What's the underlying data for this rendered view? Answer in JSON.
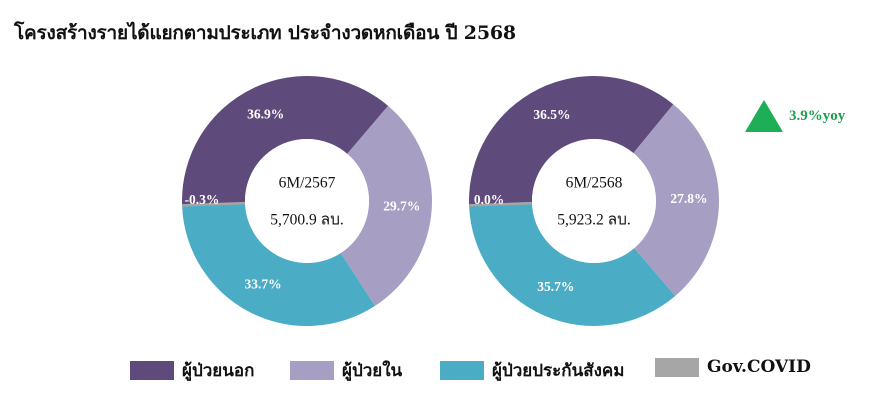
{
  "title": "โครงสร้างรายได้แยกตามประเภท ประจำงวดหกเดือน ปี 2568",
  "yoy": {
    "text": "3.9%yoy",
    "direction": "up",
    "color": "#1fae58"
  },
  "colors": {
    "outpatient": "#5e4a7b",
    "inpatient": "#a79ec4",
    "social_security": "#4bacc6",
    "gov_covid": "#a6a6a6"
  },
  "legend": [
    {
      "key": "outpatient",
      "label": "ผู้ป่วยนอก"
    },
    {
      "key": "inpatient",
      "label": "ผู้ป่วยใน"
    },
    {
      "key": "social_security",
      "label": "ผู้ป่วยประกันสังคม"
    },
    {
      "key": "gov_covid",
      "label": "Gov.COVID"
    }
  ],
  "chart_data": [
    {
      "type": "pie",
      "donut": true,
      "center_title": "6M/2567",
      "center_total": "5,700.9 ลบ.",
      "slices": [
        {
          "key": "outpatient",
          "value": 36.9,
          "label": "36.9%"
        },
        {
          "key": "inpatient",
          "value": 29.7,
          "label": "29.7%"
        },
        {
          "key": "social_security",
          "value": 33.7,
          "label": "33.7%"
        },
        {
          "key": "gov_covid",
          "value": -0.3,
          "label": "-0.3%"
        }
      ]
    },
    {
      "type": "pie",
      "donut": true,
      "center_title": "6M/2568",
      "center_total": "5,923.2 ลบ.",
      "slices": [
        {
          "key": "outpatient",
          "value": 36.5,
          "label": "36.5%"
        },
        {
          "key": "inpatient",
          "value": 27.8,
          "label": "27.8%"
        },
        {
          "key": "social_security",
          "value": 35.7,
          "label": "35.7%"
        },
        {
          "key": "gov_covid",
          "value": 0.0,
          "label": "0.0%"
        }
      ]
    }
  ]
}
